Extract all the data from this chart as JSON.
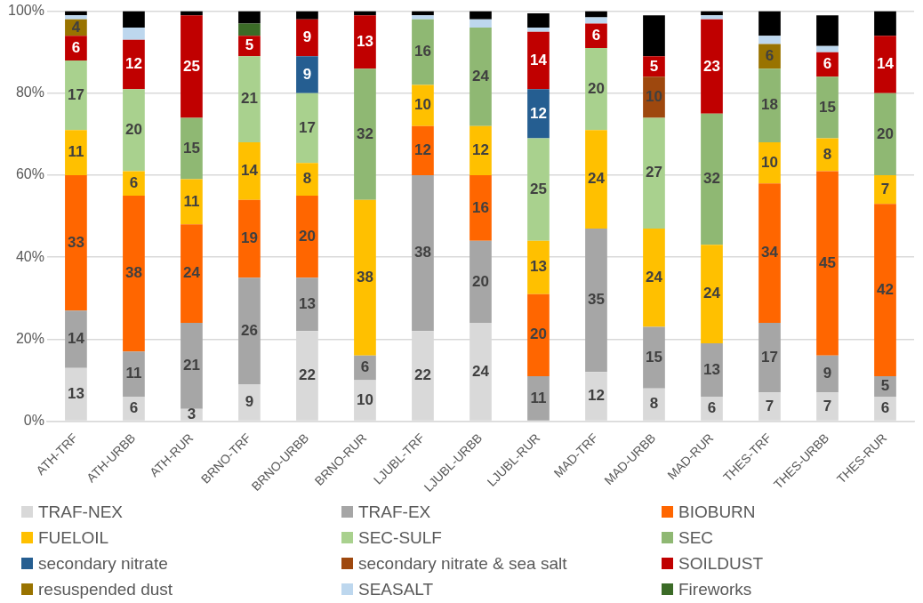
{
  "chart_data": {
    "type": "bar",
    "stacked": true,
    "categories": [
      "ATH-TRF",
      "ATH-URBB",
      "ATH-RUR",
      "BRNO-TRF",
      "BRNO-URBB",
      "BRNO-RUR",
      "LJUBL-TRF",
      "LJUBL-URBB",
      "LJUBL-RUR",
      "MAD-TRF",
      "MAD-URBB",
      "MAD-RUR",
      "THES-TRF",
      "THES-URBB",
      "THES-RUR"
    ],
    "ylim": [
      0,
      100
    ],
    "yticks": [
      {
        "value": 0,
        "label": "0%"
      },
      {
        "value": 20,
        "label": "20%"
      },
      {
        "value": 40,
        "label": "40%"
      },
      {
        "value": 60,
        "label": "60%"
      },
      {
        "value": 80,
        "label": "80%"
      },
      {
        "value": 100,
        "label": "100%"
      }
    ],
    "grid": "y",
    "legend": "bottom",
    "series": [
      {
        "name": "TRAF-NEX",
        "color": "#d9d9d9",
        "values": [
          13,
          6,
          3,
          9,
          22,
          10,
          22,
          24,
          0,
          12,
          8,
          6,
          7,
          7,
          6
        ],
        "value_labels": [
          "13",
          "6",
          "3",
          "9",
          "22",
          "10",
          "22",
          "24",
          null,
          "12",
          "8",
          "6",
          "7",
          "7",
          "6"
        ]
      },
      {
        "name": "TRAF-EX",
        "color": "#a6a6a6",
        "values": [
          14,
          11,
          21,
          26,
          13,
          6,
          38,
          20,
          11,
          35,
          15,
          13,
          17,
          9,
          5
        ],
        "value_labels": [
          "14",
          "11",
          "21",
          "26",
          "13",
          "6",
          "38",
          "20",
          "11",
          "35",
          "15",
          "13",
          "17",
          "9",
          "5"
        ]
      },
      {
        "name": "BIOBURN",
        "color": "#ff6600",
        "values": [
          33,
          38,
          24,
          19,
          20,
          0,
          12,
          16,
          20,
          0,
          0,
          0,
          34,
          45,
          42
        ],
        "value_labels": [
          "33",
          "38",
          "24",
          "19",
          "20",
          null,
          "12",
          "16",
          "20",
          null,
          null,
          null,
          "34",
          "45",
          "42"
        ]
      },
      {
        "name": "FUELOIL",
        "color": "#ffc000",
        "values": [
          11,
          6,
          11,
          14,
          8,
          38,
          10,
          12,
          13,
          24,
          24,
          24,
          10,
          8,
          7
        ],
        "value_labels": [
          "11",
          "6",
          "11",
          "14",
          "8",
          "38",
          "10",
          "12",
          "13",
          "24",
          "24",
          "24",
          "10",
          "8",
          "7"
        ]
      },
      {
        "name": "SEC-SULF",
        "color": "#a9d18e",
        "values": [
          17,
          20,
          0,
          21,
          17,
          0,
          0,
          0,
          25,
          20,
          27,
          0,
          0,
          0,
          0
        ],
        "value_labels": [
          "17",
          "20",
          null,
          "21",
          "17",
          null,
          null,
          null,
          "25",
          "20",
          "27",
          null,
          null,
          null,
          null
        ]
      },
      {
        "name": "SEC",
        "color": "#8fb873",
        "values": [
          0,
          0,
          15,
          0,
          0,
          32,
          16,
          24,
          0,
          0,
          0,
          32,
          18,
          15,
          20
        ],
        "value_labels": [
          null,
          null,
          "15",
          null,
          null,
          "32",
          "16",
          "24",
          null,
          null,
          null,
          "32",
          "18",
          "15",
          "20"
        ]
      },
      {
        "name": "secondary nitrate",
        "color": "#255e91",
        "values": [
          0,
          0,
          0,
          0,
          9,
          0,
          0,
          0,
          12,
          0,
          0,
          0,
          0,
          0,
          0
        ],
        "value_labels": [
          null,
          null,
          null,
          null,
          "9",
          null,
          null,
          null,
          "12",
          null,
          null,
          null,
          null,
          null,
          null
        ]
      },
      {
        "name": "secondary nitrate & sea salt",
        "color": "#9e480e",
        "values": [
          0,
          0,
          0,
          0,
          0,
          0,
          0,
          0,
          0,
          0,
          10,
          0,
          0,
          0,
          0
        ],
        "value_labels": [
          null,
          null,
          null,
          null,
          null,
          null,
          null,
          null,
          null,
          null,
          "10",
          null,
          null,
          null,
          null
        ]
      },
      {
        "name": "SOILDUST",
        "color": "#c00000",
        "values": [
          6,
          12,
          25,
          5,
          9,
          13,
          0,
          0,
          14,
          6,
          5,
          23,
          0,
          6,
          14
        ],
        "value_labels": [
          "6",
          "12",
          "25",
          "5",
          "9",
          "13",
          null,
          null,
          "14",
          "6",
          "5",
          "23",
          null,
          "6",
          "14"
        ]
      },
      {
        "name": "resuspended dust",
        "color": "#997300",
        "values": [
          4,
          0,
          0,
          0,
          0,
          0,
          0,
          0,
          0,
          0,
          0,
          0,
          6,
          0,
          0
        ],
        "value_labels": [
          "4",
          null,
          null,
          null,
          null,
          null,
          null,
          null,
          null,
          null,
          null,
          null,
          "6",
          null,
          null
        ]
      },
      {
        "name": "SEASALT",
        "color": "#bdd7ee",
        "values": [
          1,
          3,
          0,
          0,
          0,
          0,
          1,
          2,
          1,
          1.5,
          0,
          1,
          2,
          1.5,
          0
        ]
      },
      {
        "name": "Fireworks",
        "color": "#3b6b27",
        "values": [
          0,
          0,
          0,
          3,
          0,
          0,
          0,
          0,
          0,
          0,
          0,
          0,
          0,
          0,
          0
        ]
      },
      {
        "color": "#000000",
        "values": [
          1,
          4,
          1,
          3,
          2,
          1,
          1,
          2,
          3.5,
          1.5,
          10,
          1,
          6,
          7.5,
          6
        ]
      }
    ]
  }
}
